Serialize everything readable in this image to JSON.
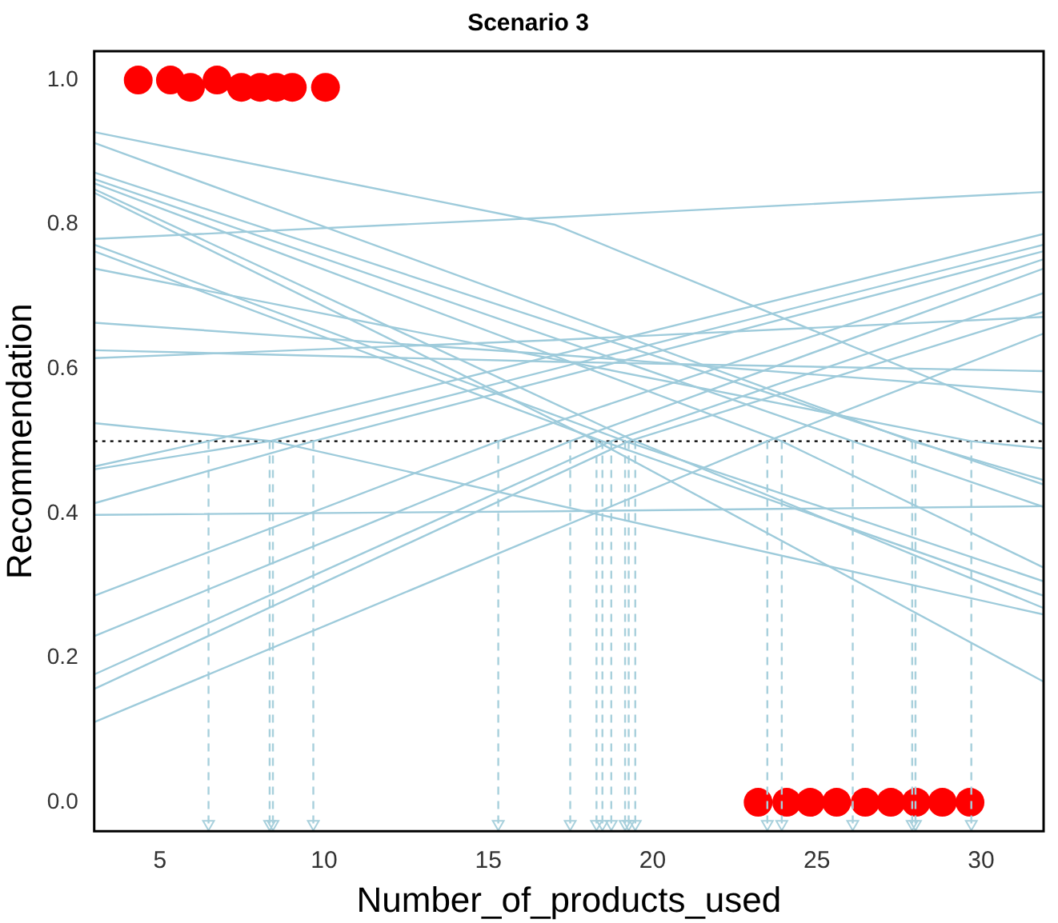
{
  "chart_data": {
    "type": "line",
    "title": "Scenario 3",
    "xlabel": "Number_of_products_used",
    "ylabel": "Recommendation",
    "xlim": [
      3,
      31.9
    ],
    "xticks": [
      5,
      10,
      15,
      20,
      25,
      30
    ],
    "ylim": [
      -0.04,
      1.04
    ],
    "yticks": [
      {
        "value": 0,
        "label": "0.0"
      },
      0.2,
      0.4,
      0.6,
      0.8,
      {
        "value": 1,
        "label": "1.0"
      }
    ],
    "grid": false,
    "legend": false,
    "marker": "none",
    "line_style": "solid",
    "ref_lines": [
      {
        "axis": "y",
        "value": 0.5,
        "color": "#000000",
        "line_style": "dotted"
      }
    ],
    "series": [
      {
        "color": "#9ecbdb",
        "x": [
          3,
          6.48,
          31.9
        ],
        "values": [
          0.465,
          0.5,
          0.787
        ]
      },
      {
        "color": "#9ecbdb",
        "x": [
          3,
          8.34,
          31.9
        ],
        "values": [
          0.461,
          0.5,
          0.772
        ]
      },
      {
        "color": "#9ecbdb",
        "x": [
          3,
          9.67,
          31.9
        ],
        "values": [
          0.414,
          0.5,
          0.763
        ]
      },
      {
        "color": "#9ecbdb",
        "x": [
          3,
          15.3,
          31.9
        ],
        "values": [
          0.286,
          0.5,
          0.752
        ]
      },
      {
        "color": "#9ecbdb",
        "x": [
          3,
          17.49,
          31.9
        ],
        "values": [
          0.23,
          0.5,
          0.739
        ]
      },
      {
        "color": "#9ecbdb",
        "x": [
          3,
          18.74,
          31.9
        ],
        "values": [
          0.177,
          0.5,
          0.705
        ]
      },
      {
        "color": "#9ecbdb",
        "x": [
          3,
          19.27,
          31.9
        ],
        "values": [
          0.157,
          0.5,
          0.679
        ]
      },
      {
        "color": "#9ecbdb",
        "x": [
          3,
          23.49,
          31.9
        ],
        "values": [
          0.111,
          0.5,
          0.649
        ]
      },
      {
        "color": "#9ecbdb",
        "x": [
          3,
          17,
          31.9
        ],
        "values": [
          0.78,
          0.81,
          0.845
        ]
      },
      {
        "color": "#9ecbdb",
        "x": [
          3,
          17,
          31.9
        ],
        "values": [
          0.398,
          0.403,
          0.41
        ]
      },
      {
        "color": "#9ecbdb",
        "x": [
          3,
          17,
          31.9
        ],
        "values": [
          0.615,
          0.64,
          0.672
        ]
      },
      {
        "color": "#9ecbdb",
        "x": [
          3,
          17,
          31.9
        ],
        "values": [
          0.626,
          0.61,
          0.597
        ]
      },
      {
        "color": "#9ecbdb",
        "x": [
          3,
          17,
          31.9
        ],
        "values": [
          0.928,
          0.8,
          0.523
        ]
      },
      {
        "color": "#9ecbdb",
        "x": [
          3,
          27.9,
          31.9
        ],
        "values": [
          0.913,
          0.5,
          0.446
        ]
      },
      {
        "color": "#9ecbdb",
        "x": [
          3,
          28,
          31.9
        ],
        "values": [
          0.872,
          0.5,
          0.44
        ]
      },
      {
        "color": "#9ecbdb",
        "x": [
          3,
          26.09,
          31.9
        ],
        "values": [
          0.863,
          0.5,
          0.409
        ]
      },
      {
        "color": "#9ecbdb",
        "x": [
          3,
          23.93,
          31.9
        ],
        "values": [
          0.857,
          0.5,
          0.325
        ]
      },
      {
        "color": "#9ecbdb",
        "x": [
          3,
          19.47,
          31.9
        ],
        "values": [
          0.849,
          0.5,
          0.269
        ]
      },
      {
        "color": "#9ecbdb",
        "x": [
          3,
          18.29,
          31.9
        ],
        "values": [
          0.844,
          0.5,
          0.167
        ]
      },
      {
        "color": "#9ecbdb",
        "x": [
          3,
          19.16,
          31.9
        ],
        "values": [
          0.772,
          0.5,
          0.306
        ]
      },
      {
        "color": "#9ecbdb",
        "x": [
          3,
          18.47,
          31.9
        ],
        "values": [
          0.763,
          0.5,
          0.286
        ]
      },
      {
        "color": "#9ecbdb",
        "x": [
          3,
          29.7,
          31.9
        ],
        "values": [
          0.739,
          0.5,
          0.49
        ]
      },
      {
        "color": "#9ecbdb",
        "x": [
          3,
          17,
          31.9
        ],
        "values": [
          0.664,
          0.62,
          0.568
        ]
      },
      {
        "color": "#9ecbdb",
        "x": [
          3,
          8.44,
          31.9
        ],
        "values": [
          0.525,
          0.5,
          0.26
        ]
      },
      {
        "color": "#a8d0dc",
        "line_style": "dashed",
        "marker": "triangle",
        "x": [
          6.48,
          6.48
        ],
        "values": [
          0.5,
          -0.03
        ]
      },
      {
        "color": "#a8d0dc",
        "line_style": "dashed",
        "marker": "triangle",
        "x": [
          8.34,
          8.34
        ],
        "values": [
          0.5,
          -0.03
        ]
      },
      {
        "color": "#a8d0dc",
        "line_style": "dashed",
        "marker": "triangle",
        "x": [
          8.44,
          8.44
        ],
        "values": [
          0.5,
          -0.03
        ]
      },
      {
        "color": "#a8d0dc",
        "line_style": "dashed",
        "marker": "triangle",
        "x": [
          9.67,
          9.67
        ],
        "values": [
          0.5,
          -0.03
        ]
      },
      {
        "color": "#a8d0dc",
        "line_style": "dashed",
        "marker": "triangle",
        "x": [
          15.3,
          15.3
        ],
        "values": [
          0.5,
          -0.03
        ]
      },
      {
        "color": "#a8d0dc",
        "line_style": "dashed",
        "marker": "triangle",
        "x": [
          17.49,
          17.49
        ],
        "values": [
          0.5,
          -0.03
        ]
      },
      {
        "color": "#a8d0dc",
        "line_style": "dashed",
        "marker": "triangle",
        "x": [
          18.29,
          18.29
        ],
        "values": [
          0.5,
          -0.03
        ]
      },
      {
        "color": "#a8d0dc",
        "line_style": "dashed",
        "marker": "triangle",
        "x": [
          18.47,
          18.47
        ],
        "values": [
          0.5,
          -0.03
        ]
      },
      {
        "color": "#a8d0dc",
        "line_style": "dashed",
        "marker": "triangle",
        "x": [
          18.74,
          18.74
        ],
        "values": [
          0.5,
          -0.03
        ]
      },
      {
        "color": "#a8d0dc",
        "line_style": "dashed",
        "marker": "triangle",
        "x": [
          19.16,
          19.16
        ],
        "values": [
          0.5,
          -0.03
        ]
      },
      {
        "color": "#a8d0dc",
        "line_style": "dashed",
        "marker": "triangle",
        "x": [
          19.27,
          19.27
        ],
        "values": [
          0.5,
          -0.03
        ]
      },
      {
        "color": "#a8d0dc",
        "line_style": "dashed",
        "marker": "triangle",
        "x": [
          19.47,
          19.47
        ],
        "values": [
          0.5,
          -0.03
        ]
      },
      {
        "color": "#a8d0dc",
        "line_style": "dashed",
        "marker": "triangle",
        "x": [
          23.49,
          23.49
        ],
        "values": [
          0.5,
          -0.03
        ]
      },
      {
        "color": "#a8d0dc",
        "line_style": "dashed",
        "marker": "triangle",
        "x": [
          23.93,
          23.93
        ],
        "values": [
          0.5,
          -0.03
        ]
      },
      {
        "color": "#a8d0dc",
        "line_style": "dashed",
        "marker": "triangle",
        "x": [
          26.09,
          26.09
        ],
        "values": [
          0.5,
          -0.03
        ]
      },
      {
        "color": "#a8d0dc",
        "line_style": "dashed",
        "marker": "triangle",
        "x": [
          27.9,
          27.9
        ],
        "values": [
          0.5,
          -0.03
        ]
      },
      {
        "color": "#a8d0dc",
        "line_style": "dashed",
        "marker": "triangle",
        "x": [
          28,
          28
        ],
        "values": [
          0.5,
          -0.03
        ]
      },
      {
        "color": "#a8d0dc",
        "line_style": "dashed",
        "marker": "triangle",
        "x": [
          29.7,
          29.7
        ],
        "values": [
          0.5,
          -0.03
        ]
      },
      {
        "type": "scatter",
        "marker": "circle",
        "color": "#ff0000",
        "x": [
          4.34,
          5.32,
          5.93,
          6.74,
          7.48,
          8.05,
          8.54,
          9.03,
          10.04
        ],
        "values": [
          1,
          1,
          0.99,
          1,
          0.99,
          0.99,
          0.99,
          0.99,
          0.99
        ]
      },
      {
        "type": "scatter",
        "marker": "circle",
        "color": "#ff0000",
        "x": [
          23.21,
          24.08,
          24.8,
          25.6,
          26.47,
          27.25,
          28.02,
          28.82,
          29.66
        ],
        "values": [
          0,
          0,
          0,
          0,
          0,
          0,
          0,
          0,
          0
        ]
      }
    ]
  }
}
